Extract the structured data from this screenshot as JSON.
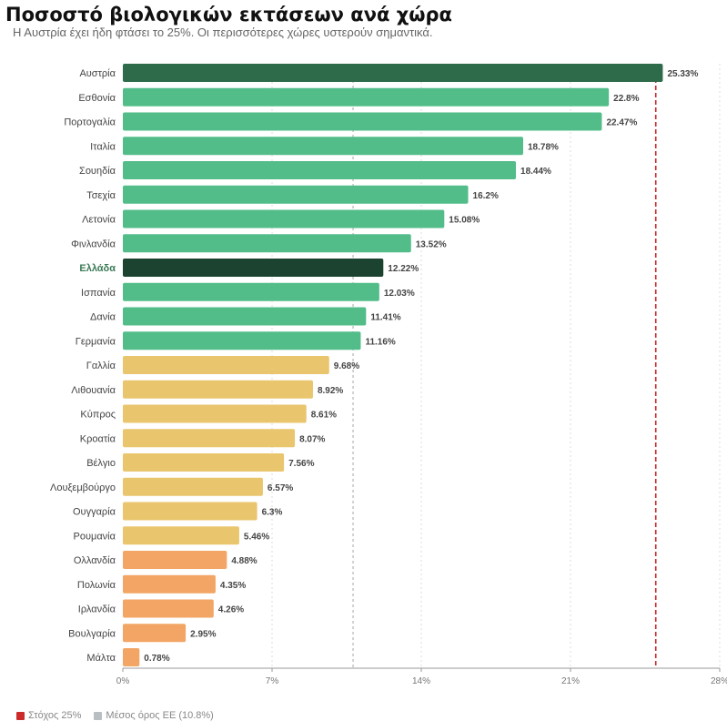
{
  "header": {
    "title": "Ποσοστό βιολογικών εκτάσεων ανά χώρα",
    "subtitle": "Η Αυστρία έχει ήδη φτάσει το 25%. Οι περισσότερες χώρες υστερούν σημαντικά."
  },
  "legend": {
    "target_label": "Στόχος 25%",
    "target_color": "#cc2b2b",
    "average_label": "Μέσος όρος ΕΕ (10.8%)",
    "average_color": "#b9bec3"
  },
  "chart_data": {
    "type": "bar",
    "orientation": "horizontal",
    "categories": [
      "Αυστρία",
      "Εσθονία",
      "Πορτογαλία",
      "Ιταλία",
      "Σουηδία",
      "Τσεχία",
      "Λετονία",
      "Φινλανδία",
      "Ελλάδα",
      "Ισπανία",
      "Δανία",
      "Γερμανία",
      "Γαλλία",
      "Λιθουανία",
      "Κύπρος",
      "Κροατία",
      "Βέλγιο",
      "Λουξεμβούργο",
      "Ουγγαρία",
      "Ρουμανία",
      "Ολλανδία",
      "Πολωνία",
      "Ιρλανδία",
      "Βουλγαρία",
      "Μάλτα"
    ],
    "values": [
      25.33,
      22.8,
      22.47,
      18.78,
      18.44,
      16.2,
      15.08,
      13.52,
      12.22,
      12.03,
      11.41,
      11.16,
      9.68,
      8.92,
      8.61,
      8.07,
      7.56,
      6.57,
      6.3,
      5.46,
      4.88,
      4.35,
      4.26,
      2.95,
      0.78
    ],
    "value_labels": [
      "25.33%",
      "22.8%",
      "22.47%",
      "18.78%",
      "18.44%",
      "16.2%",
      "15.08%",
      "13.52%",
      "12.22%",
      "12.03%",
      "11.41%",
      "11.16%",
      "9.68%",
      "8.92%",
      "8.61%",
      "8.07%",
      "7.56%",
      "6.57%",
      "6.3%",
      "5.46%",
      "4.88%",
      "4.35%",
      "4.26%",
      "2.95%",
      "0.78%"
    ],
    "x_ticks": [
      0,
      7,
      14,
      21,
      28
    ],
    "x_tick_labels": [
      "0%",
      "7%",
      "14%",
      "21%",
      "28%"
    ],
    "xlim": [
      0,
      28
    ],
    "target_line": 25,
    "average_line": 10.8,
    "highlight_categories": [
      "Αυστρία",
      "Ελλάδα"
    ],
    "colors": {
      "austria": "#2e6b4a",
      "greece": "#1c4330",
      "high": "#52bd89",
      "mid": "#e9c56e",
      "low": "#f2a564",
      "greece_label": "#3d7a57",
      "grid": "#dddddd",
      "label_text": "#444444",
      "value_text": "#444444"
    }
  }
}
